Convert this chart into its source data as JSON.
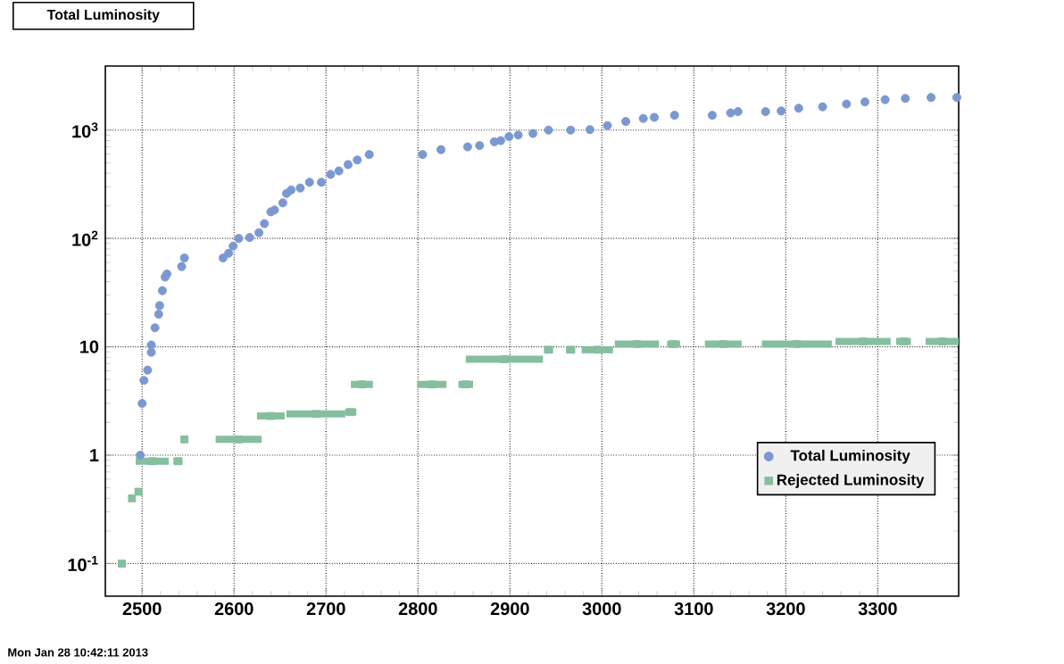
{
  "chart_data": {
    "type": "scatter",
    "title": "Total Luminosity",
    "annotations": [
      "Mon Jan 28 10:42:11 2013"
    ],
    "xlim": [
      2460,
      3388
    ],
    "ylim": [
      0.05,
      3900
    ],
    "log": "y",
    "grid": true,
    "legend": "bottom right",
    "xticks": [
      2500,
      2600,
      2700,
      2800,
      2900,
      3000,
      3100,
      3200,
      3300
    ],
    "yticks": [
      {
        "value": 0.1,
        "label": "10$^{-1}$"
      },
      1,
      10,
      {
        "value": 100,
        "label": "10$^{2}$"
      },
      {
        "value": 1000,
        "label": "10$^{3}$"
      }
    ],
    "series": [
      {
        "name": "Total Luminosity",
        "color": "#7b98d0",
        "marker": "circle",
        "x": [
          2498,
          2500,
          2502,
          2506,
          2510,
          2510,
          2514,
          2518,
          2519,
          2522,
          2525,
          2527,
          2543,
          2546,
          2588,
          2594,
          2599,
          2605,
          2617,
          2627,
          2633,
          2640,
          2644,
          2653,
          2657,
          2662,
          2672,
          2682,
          2695,
          2705,
          2714,
          2724,
          2734,
          2747,
          2805,
          2825,
          2854,
          2867,
          2883,
          2890,
          2899,
          2909,
          2925,
          2942,
          2966,
          2987,
          3006,
          3026,
          3045,
          3057,
          3079,
          3120,
          3140,
          3148,
          3178,
          3195,
          3214,
          3240,
          3266,
          3286,
          3308,
          3330,
          3358,
          3386
        ],
        "values": [
          1.0,
          3.0,
          4.9,
          6.1,
          8.9,
          10.4,
          15,
          20,
          24,
          33,
          44,
          47,
          55,
          66,
          66,
          73,
          85,
          100,
          102,
          113,
          137,
          176,
          183,
          213,
          260,
          280,
          292,
          330,
          330,
          390,
          420,
          480,
          530,
          595,
          595,
          660,
          700,
          720,
          780,
          800,
          870,
          900,
          930,
          1000,
          1000,
          1010,
          1100,
          1200,
          1280,
          1310,
          1370,
          1370,
          1440,
          1480,
          1480,
          1500,
          1590,
          1640,
          1740,
          1820,
          1910,
          1960,
          2000,
          2000
        ]
      },
      {
        "name": "Rejected Luminosity",
        "color": "#86bea0",
        "marker": "square",
        "x": [
          2478,
          2489,
          2496,
          2511,
          2539,
          2546,
          2605,
          2640,
          2689,
          2727,
          2739,
          2815,
          2852,
          2894,
          2942,
          2966,
          2995,
          3038,
          3078,
          3132,
          3212,
          3284,
          3328,
          3370
        ],
        "values": [
          0.1,
          0.4,
          0.46,
          0.88,
          0.88,
          1.4,
          1.4,
          2.3,
          2.4,
          2.5,
          4.5,
          4.5,
          4.5,
          7.7,
          9.4,
          9.4,
          9.4,
          10.6,
          10.6,
          10.6,
          10.6,
          11.2,
          11.2,
          11.2
        ],
        "xerrors": [
          4,
          null,
          null,
          18,
          5,
          4,
          25,
          15,
          32,
          6,
          12,
          16,
          8,
          42,
          5,
          5,
          17,
          24,
          7,
          20,
          38,
          30,
          8,
          18
        ]
      }
    ]
  }
}
